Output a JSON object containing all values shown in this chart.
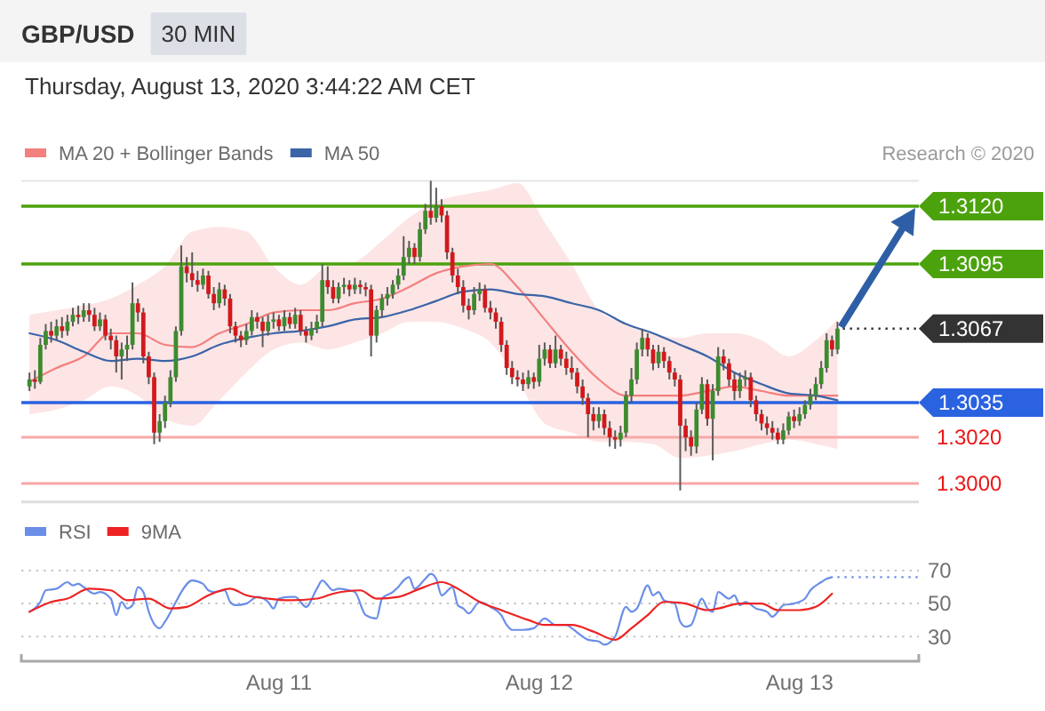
{
  "chart_data": [
    {
      "type": "candlestick",
      "title": "GBP/USD",
      "subtitle": "Thursday, August 13, 2020 3:44:22 AM CET",
      "annotations": [
        "30 MIN",
        "Research © 2020"
      ],
      "x": [
        "2020-08-10T01:00",
        "2020-08-10T01:30",
        "2020-08-10T02:00",
        "2020-08-10T02:30",
        "2020-08-10T03:00",
        "2020-08-10T03:30",
        "2020-08-10T04:00",
        "2020-08-10T04:30",
        "2020-08-10T05:00",
        "2020-08-10T05:30",
        "2020-08-10T06:00",
        "2020-08-10T06:30",
        "2020-08-10T07:00",
        "2020-08-10T07:30",
        "2020-08-10T08:00",
        "2020-08-10T08:30",
        "2020-08-10T09:00",
        "2020-08-10T09:30",
        "2020-08-10T10:00",
        "2020-08-10T10:30",
        "2020-08-10T11:00",
        "2020-08-10T11:30",
        "2020-08-10T12:00",
        "2020-08-10T12:30",
        "2020-08-10T13:00",
        "2020-08-10T13:30",
        "2020-08-10T14:00",
        "2020-08-10T14:30",
        "2020-08-10T15:00",
        "2020-08-10T15:30",
        "2020-08-10T16:00",
        "2020-08-10T16:30",
        "2020-08-10T17:00",
        "2020-08-10T17:30",
        "2020-08-10T18:00",
        "2020-08-10T18:30",
        "2020-08-10T19:00",
        "2020-08-10T19:30",
        "2020-08-10T20:00",
        "2020-08-10T20:30",
        "2020-08-10T21:00",
        "2020-08-10T21:30",
        "2020-08-10T22:00",
        "2020-08-10T22:30",
        "2020-08-10T23:00",
        "2020-08-10T23:30",
        "2020-08-11T00:00",
        "2020-08-11T00:30",
        "2020-08-11T01:00",
        "2020-08-11T01:30",
        "2020-08-11T02:00",
        "2020-08-11T02:30",
        "2020-08-11T03:00",
        "2020-08-11T03:30",
        "2020-08-11T04:00",
        "2020-08-11T04:30",
        "2020-08-11T05:00",
        "2020-08-11T05:30",
        "2020-08-11T06:00",
        "2020-08-11T06:30",
        "2020-08-11T07:00",
        "2020-08-11T07:30",
        "2020-08-11T08:00",
        "2020-08-11T08:30",
        "2020-08-11T09:00",
        "2020-08-11T09:30",
        "2020-08-11T10:00",
        "2020-08-11T10:30",
        "2020-08-11T11:00",
        "2020-08-11T11:30",
        "2020-08-11T12:00",
        "2020-08-11T12:30",
        "2020-08-11T13:00",
        "2020-08-11T13:30",
        "2020-08-11T14:00",
        "2020-08-11T14:30",
        "2020-08-11T15:00",
        "2020-08-11T15:30",
        "2020-08-11T16:00",
        "2020-08-11T16:30",
        "2020-08-11T17:00",
        "2020-08-11T17:30",
        "2020-08-11T18:00",
        "2020-08-11T18:30",
        "2020-08-11T19:00",
        "2020-08-11T19:30",
        "2020-08-11T20:00",
        "2020-08-11T20:30",
        "2020-08-11T21:00",
        "2020-08-11T21:30",
        "2020-08-11T22:00",
        "2020-08-11T22:30",
        "2020-08-11T23:00",
        "2020-08-11T23:30",
        "2020-08-12T00:00",
        "2020-08-12T00:30",
        "2020-08-12T01:00",
        "2020-08-12T01:30",
        "2020-08-12T02:00",
        "2020-08-12T02:30",
        "2020-08-12T03:00",
        "2020-08-12T03:30",
        "2020-08-12T04:00",
        "2020-08-12T04:30",
        "2020-08-12T05:00",
        "2020-08-12T05:30",
        "2020-08-12T06:00",
        "2020-08-12T06:30",
        "2020-08-12T07:00",
        "2020-08-12T07:30",
        "2020-08-12T08:00",
        "2020-08-12T08:30",
        "2020-08-12T09:00",
        "2020-08-12T09:30",
        "2020-08-12T10:00",
        "2020-08-12T10:30",
        "2020-08-12T11:00",
        "2020-08-12T11:30",
        "2020-08-12T12:00",
        "2020-08-12T12:30",
        "2020-08-12T13:00",
        "2020-08-12T13:30",
        "2020-08-12T14:00",
        "2020-08-12T14:30",
        "2020-08-12T15:00",
        "2020-08-12T15:30",
        "2020-08-12T16:00",
        "2020-08-12T16:30",
        "2020-08-12T17:00",
        "2020-08-12T17:30",
        "2020-08-12T18:00",
        "2020-08-12T18:30",
        "2020-08-12T19:00",
        "2020-08-12T19:30",
        "2020-08-12T20:00",
        "2020-08-12T20:30",
        "2020-08-12T21:00",
        "2020-08-12T21:30",
        "2020-08-12T22:00",
        "2020-08-12T22:30",
        "2020-08-12T23:00",
        "2020-08-12T23:30",
        "2020-08-13T00:00",
        "2020-08-13T00:30",
        "2020-08-13T01:00",
        "2020-08-13T01:30",
        "2020-08-13T02:00",
        "2020-08-13T02:30",
        "2020-08-13T03:00",
        "2020-08-13T03:30"
      ],
      "ohlc": [
        [
          1.3042,
          1.3048,
          1.304,
          1.3045
        ],
        [
          1.3045,
          1.3049,
          1.3041,
          1.3044
        ],
        [
          1.3044,
          1.3063,
          1.3043,
          1.306
        ],
        [
          1.306,
          1.3069,
          1.3058,
          1.3066
        ],
        [
          1.3066,
          1.307,
          1.3061,
          1.3064
        ],
        [
          1.3064,
          1.3071,
          1.3062,
          1.3068
        ],
        [
          1.3068,
          1.3072,
          1.3063,
          1.3066
        ],
        [
          1.3066,
          1.3073,
          1.3064,
          1.307
        ],
        [
          1.307,
          1.3076,
          1.3068,
          1.3073
        ],
        [
          1.3073,
          1.3077,
          1.3069,
          1.3072
        ],
        [
          1.3072,
          1.3078,
          1.307,
          1.3075
        ],
        [
          1.3075,
          1.3078,
          1.307,
          1.3073
        ],
        [
          1.3073,
          1.3076,
          1.3066,
          1.3068
        ],
        [
          1.3068,
          1.3074,
          1.3066,
          1.3071
        ],
        [
          1.3071,
          1.3073,
          1.3062,
          1.3064
        ],
        [
          1.3064,
          1.3067,
          1.3058,
          1.3062
        ],
        [
          1.3062,
          1.3064,
          1.3048,
          1.3055
        ],
        [
          1.3055,
          1.3061,
          1.3045,
          1.3058
        ],
        [
          1.3058,
          1.3064,
          1.3053,
          1.306
        ],
        [
          1.306,
          1.3087,
          1.3058,
          1.3078
        ],
        [
          1.3078,
          1.308,
          1.307,
          1.3074
        ],
        [
          1.3074,
          1.3076,
          1.3052,
          1.3055
        ],
        [
          1.3055,
          1.3057,
          1.3043,
          1.3046
        ],
        [
          1.3046,
          1.3048,
          1.3017,
          1.3022
        ],
        [
          1.3022,
          1.303,
          1.3018,
          1.3027
        ],
        [
          1.3027,
          1.3038,
          1.3024,
          1.3035
        ],
        [
          1.3035,
          1.3049,
          1.3033,
          1.3046
        ],
        [
          1.3046,
          1.3068,
          1.3044,
          1.3066
        ],
        [
          1.3066,
          1.3103,
          1.3064,
          1.3094
        ],
        [
          1.3094,
          1.3098,
          1.3087,
          1.3091
        ],
        [
          1.3091,
          1.31,
          1.3085,
          1.3088
        ],
        [
          1.3088,
          1.3092,
          1.3083,
          1.3086
        ],
        [
          1.3086,
          1.3093,
          1.3084,
          1.309
        ],
        [
          1.309,
          1.3092,
          1.308,
          1.3082
        ],
        [
          1.3082,
          1.3085,
          1.3075,
          1.3078
        ],
        [
          1.3078,
          1.3087,
          1.3076,
          1.3084
        ],
        [
          1.3084,
          1.3086,
          1.3077,
          1.308
        ],
        [
          1.308,
          1.3082,
          1.3065,
          1.3068
        ],
        [
          1.3068,
          1.307,
          1.3061,
          1.3064
        ],
        [
          1.3064,
          1.3066,
          1.3059,
          1.3062
        ],
        [
          1.3062,
          1.3069,
          1.306,
          1.3066
        ],
        [
          1.3066,
          1.3075,
          1.3064,
          1.3072
        ],
        [
          1.3072,
          1.3074,
          1.3067,
          1.307
        ],
        [
          1.307,
          1.3072,
          1.3059,
          1.3066
        ],
        [
          1.3066,
          1.3073,
          1.3064,
          1.307
        ],
        [
          1.307,
          1.3074,
          1.3067,
          1.3071
        ],
        [
          1.3071,
          1.3073,
          1.3066,
          1.3068
        ],
        [
          1.3068,
          1.3075,
          1.3066,
          1.3072
        ],
        [
          1.3072,
          1.3074,
          1.3067,
          1.3069
        ],
        [
          1.3069,
          1.3076,
          1.3067,
          1.3073
        ],
        [
          1.3073,
          1.3075,
          1.3064,
          1.3066
        ],
        [
          1.3066,
          1.3068,
          1.3061,
          1.3064
        ],
        [
          1.3064,
          1.307,
          1.3062,
          1.3067
        ],
        [
          1.3067,
          1.3073,
          1.3065,
          1.307
        ],
        [
          1.307,
          1.3095,
          1.3068,
          1.3088
        ],
        [
          1.3088,
          1.3094,
          1.3082,
          1.3085
        ],
        [
          1.3085,
          1.3088,
          1.3078,
          1.308
        ],
        [
          1.308,
          1.3087,
          1.3078,
          1.3085
        ],
        [
          1.3085,
          1.3089,
          1.3082,
          1.3086
        ],
        [
          1.3086,
          1.3088,
          1.3081,
          1.3084
        ],
        [
          1.3084,
          1.3089,
          1.3082,
          1.3086
        ],
        [
          1.3086,
          1.3088,
          1.3082,
          1.3085
        ],
        [
          1.3085,
          1.3087,
          1.3081,
          1.3084
        ],
        [
          1.3084,
          1.3086,
          1.3055,
          1.3064
        ],
        [
          1.3064,
          1.3077,
          1.3061,
          1.3075
        ],
        [
          1.3075,
          1.3082,
          1.3072,
          1.308
        ],
        [
          1.308,
          1.3085,
          1.3077,
          1.3082
        ],
        [
          1.3082,
          1.3088,
          1.308,
          1.3086
        ],
        [
          1.3086,
          1.3093,
          1.3084,
          1.309
        ],
        [
          1.309,
          1.3107,
          1.3088,
          1.3098
        ],
        [
          1.3098,
          1.3105,
          1.3095,
          1.3102
        ],
        [
          1.3102,
          1.3104,
          1.3095,
          1.3098
        ],
        [
          1.3098,
          1.3113,
          1.3096,
          1.311
        ],
        [
          1.311,
          1.3121,
          1.3108,
          1.3118
        ],
        [
          1.3118,
          1.3131,
          1.3112,
          1.3115
        ],
        [
          1.3115,
          1.3128,
          1.3113,
          1.312
        ],
        [
          1.312,
          1.3123,
          1.3113,
          1.3116
        ],
        [
          1.3116,
          1.3118,
          1.3097,
          1.31
        ],
        [
          1.31,
          1.3102,
          1.3087,
          1.309
        ],
        [
          1.309,
          1.3093,
          1.3082,
          1.3085
        ],
        [
          1.3085,
          1.3088,
          1.3074,
          1.3077
        ],
        [
          1.3077,
          1.308,
          1.3071,
          1.3075
        ],
        [
          1.3075,
          1.3085,
          1.3073,
          1.3082
        ],
        [
          1.3082,
          1.3087,
          1.3079,
          1.3084
        ],
        [
          1.3084,
          1.3086,
          1.3074,
          1.3076
        ],
        [
          1.3076,
          1.3079,
          1.3071,
          1.3074
        ],
        [
          1.3074,
          1.3076,
          1.3067,
          1.307
        ],
        [
          1.307,
          1.3072,
          1.3057,
          1.306
        ],
        [
          1.306,
          1.3062,
          1.3047,
          1.305
        ],
        [
          1.305,
          1.3053,
          1.3043,
          1.3046
        ],
        [
          1.3046,
          1.3049,
          1.3042,
          1.3045
        ],
        [
          1.3045,
          1.3048,
          1.304,
          1.3043
        ],
        [
          1.3043,
          1.3049,
          1.3041,
          1.3046
        ],
        [
          1.3046,
          1.3048,
          1.3041,
          1.3044
        ],
        [
          1.3044,
          1.306,
          1.3042,
          1.3054
        ],
        [
          1.3054,
          1.3061,
          1.3051,
          1.3058
        ],
        [
          1.3058,
          1.306,
          1.305,
          1.3052
        ],
        [
          1.3052,
          1.3064,
          1.305,
          1.3058
        ],
        [
          1.3058,
          1.306,
          1.3051,
          1.3054
        ],
        [
          1.3054,
          1.3057,
          1.3047,
          1.305
        ],
        [
          1.305,
          1.3055,
          1.3045,
          1.3048
        ],
        [
          1.3048,
          1.305,
          1.3039,
          1.3042
        ],
        [
          1.3042,
          1.3045,
          1.3034,
          1.3037
        ],
        [
          1.3037,
          1.3039,
          1.302,
          1.303
        ],
        [
          1.303,
          1.3033,
          1.3023,
          1.3027
        ],
        [
          1.3027,
          1.3033,
          1.3024,
          1.303
        ],
        [
          1.303,
          1.3032,
          1.3021,
          1.3024
        ],
        [
          1.3024,
          1.3027,
          1.3016,
          1.302
        ],
        [
          1.302,
          1.3023,
          1.3015,
          1.3019
        ],
        [
          1.3019,
          1.3025,
          1.3016,
          1.3022
        ],
        [
          1.3022,
          1.304,
          1.302,
          1.3038
        ],
        [
          1.3038,
          1.305,
          1.3035,
          1.3045
        ],
        [
          1.3045,
          1.3061,
          1.3043,
          1.3058
        ],
        [
          1.3058,
          1.3067,
          1.3055,
          1.3063
        ],
        [
          1.3063,
          1.3065,
          1.3055,
          1.3058
        ],
        [
          1.3058,
          1.306,
          1.3049,
          1.3052
        ],
        [
          1.3052,
          1.306,
          1.305,
          1.3057
        ],
        [
          1.3057,
          1.3059,
          1.305,
          1.3053
        ],
        [
          1.3053,
          1.3055,
          1.3045,
          1.3048
        ],
        [
          1.3048,
          1.305,
          1.3042,
          1.3045
        ],
        [
          1.3045,
          1.3047,
          1.2997,
          1.3025
        ],
        [
          1.3025,
          1.3028,
          1.3014,
          1.302
        ],
        [
          1.302,
          1.3023,
          1.3012,
          1.3016
        ],
        [
          1.3016,
          1.3035,
          1.3013,
          1.3032
        ],
        [
          1.3032,
          1.3046,
          1.303,
          1.3043
        ],
        [
          1.3043,
          1.3045,
          1.3025,
          1.3028
        ],
        [
          1.3028,
          1.3043,
          1.301,
          1.304
        ],
        [
          1.304,
          1.3059,
          1.3038,
          1.3055
        ],
        [
          1.3055,
          1.3058,
          1.3049,
          1.3052
        ],
        [
          1.3052,
          1.3054,
          1.3042,
          1.3045
        ],
        [
          1.3045,
          1.3048,
          1.3036,
          1.304
        ],
        [
          1.304,
          1.3048,
          1.3037,
          1.3045
        ],
        [
          1.3045,
          1.3049,
          1.3042,
          1.3046
        ],
        [
          1.3046,
          1.3048,
          1.3033,
          1.3036
        ],
        [
          1.3036,
          1.3038,
          1.3027,
          1.303
        ],
        [
          1.303,
          1.3032,
          1.3023,
          1.3026
        ],
        [
          1.3026,
          1.3029,
          1.3021,
          1.3024
        ],
        [
          1.3024,
          1.3027,
          1.3019,
          1.3022
        ],
        [
          1.3022,
          1.3024,
          1.3017,
          1.3019
        ],
        [
          1.3019,
          1.3026,
          1.3017,
          1.3023
        ],
        [
          1.3023,
          1.3031,
          1.3021,
          1.3029
        ],
        [
          1.3029,
          1.3032,
          1.3024,
          1.3027
        ],
        [
          1.3027,
          1.3033,
          1.3025,
          1.303
        ],
        [
          1.303,
          1.3036,
          1.3028,
          1.3034
        ],
        [
          1.3034,
          1.3041,
          1.3032,
          1.3038
        ],
        [
          1.3038,
          1.3046,
          1.3036,
          1.3043
        ],
        [
          1.3043,
          1.3053,
          1.3041,
          1.305
        ],
        [
          1.305,
          1.3065,
          1.3048,
          1.3062
        ],
        [
          1.3062,
          1.3064,
          1.3055,
          1.3058
        ],
        [
          1.3058,
          1.307,
          1.3056,
          1.3067
        ]
      ],
      "series": [
        {
          "name": "MA 20 + Bollinger Bands",
          "type": "line",
          "color": "#f47f7f",
          "x": [
            "2020-08-10T01:00",
            "2020-08-10T03:30",
            "2020-08-10T06:00",
            "2020-08-10T08:30",
            "2020-08-10T11:00",
            "2020-08-10T13:30",
            "2020-08-10T16:00",
            "2020-08-10T18:30",
            "2020-08-10T21:00",
            "2020-08-10T23:30",
            "2020-08-11T02:00",
            "2020-08-11T04:30",
            "2020-08-11T07:00",
            "2020-08-11T09:30",
            "2020-08-11T12:00",
            "2020-08-11T14:30",
            "2020-08-11T17:00",
            "2020-08-11T19:30",
            "2020-08-11T22:00",
            "2020-08-12T00:30",
            "2020-08-12T03:00",
            "2020-08-12T05:30",
            "2020-08-12T08:00",
            "2020-08-12T10:30",
            "2020-08-12T13:00",
            "2020-08-12T15:30",
            "2020-08-12T18:00",
            "2020-08-12T20:30",
            "2020-08-12T23:00",
            "2020-08-13T01:30",
            "2020-08-13T03:30"
          ],
          "values": [
            1.3044,
            1.305,
            1.3055,
            1.3065,
            1.3065,
            1.306,
            1.3059,
            1.3065,
            1.3069,
            1.3074,
            1.3075,
            1.3075,
            1.3078,
            1.308,
            1.3085,
            1.3091,
            1.3094,
            1.3095,
            1.3085,
            1.3071,
            1.3057,
            1.3045,
            1.3038,
            1.3038,
            1.3038,
            1.304,
            1.3042,
            1.304,
            1.3038,
            1.3038,
            1.3038
          ],
          "lower": [
            1.303,
            1.3032,
            1.3036,
            1.3042,
            1.3038,
            1.3028,
            1.3025,
            1.3036,
            1.3048,
            1.3058,
            1.3061,
            1.3058,
            1.3061,
            1.3065,
            1.307,
            1.307,
            1.3067,
            1.3061,
            1.3045,
            1.3026,
            1.3022,
            1.3018,
            1.3018,
            1.3017,
            1.3011,
            1.3012,
            1.3014,
            1.3017,
            1.3019,
            1.3017,
            1.3015
          ],
          "upper": [
            1.3073,
            1.3075,
            1.3077,
            1.308,
            1.3086,
            1.3094,
            1.3109,
            1.3111,
            1.3109,
            1.3094,
            1.3086,
            1.3094,
            1.3096,
            1.3105,
            1.3115,
            1.3122,
            1.3125,
            1.3127,
            1.313,
            1.3113,
            1.3095,
            1.3075,
            1.3069,
            1.3065,
            1.3063,
            1.3065,
            1.3065,
            1.3062,
            1.3055,
            1.3062,
            1.3071
          ]
        },
        {
          "name": "MA 50",
          "type": "line",
          "color": "#3b64a8",
          "x": [
            "2020-08-10T01:00",
            "2020-08-10T03:30",
            "2020-08-10T06:00",
            "2020-08-10T08:30",
            "2020-08-10T11:00",
            "2020-08-10T13:30",
            "2020-08-10T16:00",
            "2020-08-10T18:30",
            "2020-08-10T21:00",
            "2020-08-10T23:30",
            "2020-08-11T02:00",
            "2020-08-11T04:30",
            "2020-08-11T07:00",
            "2020-08-11T09:30",
            "2020-08-11T12:00",
            "2020-08-11T14:30",
            "2020-08-11T17:00",
            "2020-08-11T19:30",
            "2020-08-11T22:00",
            "2020-08-12T00:30",
            "2020-08-12T03:00",
            "2020-08-12T05:30",
            "2020-08-12T08:00",
            "2020-08-12T10:30",
            "2020-08-12T13:00",
            "2020-08-12T15:30",
            "2020-08-12T18:00",
            "2020-08-12T20:30",
            "2020-08-12T23:00",
            "2020-08-13T01:30",
            "2020-08-13T03:30"
          ],
          "values": [
            1.3065,
            1.3062,
            1.3057,
            1.3053,
            1.3054,
            1.3053,
            1.3055,
            1.306,
            1.3063,
            1.3065,
            1.3066,
            1.3068,
            1.3071,
            1.3072,
            1.3075,
            1.3079,
            1.3083,
            1.3084,
            1.3082,
            1.3081,
            1.3078,
            1.3075,
            1.3069,
            1.3065,
            1.306,
            1.3055,
            1.3048,
            1.3043,
            1.3039,
            1.3038,
            1.3036
          ]
        }
      ],
      "xlim": [
        "2020-08-10T00:15",
        "2020-08-13T11:00"
      ],
      "ylim": [
        1.2992,
        1.3131
      ],
      "legend": "top left",
      "ref_lines": [
        {
          "axis": "y",
          "value": 1.312,
          "label": "1.3120",
          "color": "#4ba20c",
          "line_style": "solid"
        },
        {
          "axis": "y",
          "value": 1.3095,
          "label": "1.3095",
          "color": "#4ba20c",
          "line_style": "solid"
        },
        {
          "axis": "y",
          "value": 1.3067,
          "label": "1.3067",
          "color": "#333333",
          "line_style": "dotted"
        },
        {
          "axis": "y",
          "value": 1.3035,
          "label": "1.3035",
          "color": "#2a62e0",
          "line_style": "solid"
        },
        {
          "axis": "y",
          "value": 1.302,
          "label": "1.3020",
          "color": "#f7a8a8",
          "line_style": "solid"
        },
        {
          "axis": "y",
          "value": 1.3,
          "label": "1.3000",
          "color": "#f7a8a8",
          "line_style": "solid"
        }
      ]
    },
    {
      "type": "line",
      "series": [
        {
          "name": "RSI",
          "color": "#6a8ee8",
          "x": [
            "2020-08-10T01:00",
            "2020-08-10T02:00",
            "2020-08-10T02:30",
            "2020-08-10T03:30",
            "2020-08-10T04:30",
            "2020-08-10T05:00",
            "2020-08-10T05:30",
            "2020-08-10T06:00",
            "2020-08-10T07:00",
            "2020-08-10T07:30",
            "2020-08-10T08:30",
            "2020-08-10T09:00",
            "2020-08-10T09:30",
            "2020-08-10T10:00",
            "2020-08-10T10:30",
            "2020-08-10T11:00",
            "2020-08-10T11:30",
            "2020-08-10T12:00",
            "2020-08-10T13:00",
            "2020-08-10T13:30",
            "2020-08-10T14:30",
            "2020-08-10T15:00",
            "2020-08-10T16:00",
            "2020-08-10T17:00",
            "2020-08-10T17:30",
            "2020-08-10T18:00",
            "2020-08-10T19:00",
            "2020-08-10T19:30",
            "2020-08-10T20:00",
            "2020-08-10T21:00",
            "2020-08-10T22:00",
            "2020-08-10T23:00",
            "2020-08-10T23:30",
            "2020-08-11T00:00",
            "2020-08-11T01:00",
            "2020-08-11T01:30",
            "2020-08-11T02:30",
            "2020-08-11T03:30",
            "2020-08-11T04:00",
            "2020-08-11T05:00",
            "2020-08-11T05:30",
            "2020-08-11T06:30",
            "2020-08-11T07:00",
            "2020-08-11T08:00",
            "2020-08-11T09:00",
            "2020-08-11T09:30",
            "2020-08-11T10:30",
            "2020-08-11T11:00",
            "2020-08-11T11:30",
            "2020-08-11T12:00",
            "2020-08-11T12:30",
            "2020-08-11T13:30",
            "2020-08-11T14:00",
            "2020-08-11T14:30",
            "2020-08-11T15:00",
            "2020-08-11T16:00",
            "2020-08-11T16:30",
            "2020-08-11T17:00",
            "2020-08-11T17:30",
            "2020-08-11T18:30",
            "2020-08-11T19:00",
            "2020-08-11T19:30",
            "2020-08-11T20:30",
            "2020-08-11T21:00",
            "2020-08-11T21:30",
            "2020-08-11T22:30",
            "2020-08-11T23:30",
            "2020-08-12T00:30",
            "2020-08-12T01:30",
            "2020-08-12T02:00",
            "2020-08-12T02:30",
            "2020-08-12T03:00",
            "2020-08-12T04:00",
            "2020-08-12T04:30",
            "2020-08-12T05:30",
            "2020-08-12T06:00",
            "2020-08-12T07:00",
            "2020-08-12T08:00",
            "2020-08-12T08:30",
            "2020-08-12T09:00",
            "2020-08-12T10:00",
            "2020-08-12T10:30",
            "2020-08-12T11:00",
            "2020-08-12T11:30",
            "2020-08-12T12:30",
            "2020-08-12T13:00",
            "2020-08-12T13:30",
            "2020-08-12T14:00",
            "2020-08-12T15:00",
            "2020-08-12T15:30",
            "2020-08-12T16:00",
            "2020-08-12T16:30",
            "2020-08-12T17:30",
            "2020-08-12T18:00",
            "2020-08-12T18:30",
            "2020-08-12T19:00",
            "2020-08-12T20:00",
            "2020-08-12T21:00",
            "2020-08-12T21:30",
            "2020-08-12T22:00",
            "2020-08-12T22:30",
            "2020-08-12T23:30",
            "2020-08-13T00:30",
            "2020-08-13T01:00",
            "2020-08-13T02:00",
            "2020-08-13T02:30",
            "2020-08-13T03:00"
          ],
          "values": [
            45,
            51,
            58,
            59,
            63,
            61,
            62,
            60,
            56,
            57,
            53,
            43,
            51,
            47,
            49,
            60,
            57,
            45,
            35,
            39,
            51,
            57,
            64,
            62,
            58,
            57,
            58,
            51,
            49,
            50,
            54,
            51,
            47,
            53,
            54,
            54,
            48,
            59,
            64,
            58,
            59,
            58,
            57,
            43,
            41,
            53,
            57,
            60,
            64,
            66,
            59,
            65,
            68,
            65,
            55,
            60,
            49,
            47,
            44,
            51,
            50,
            48,
            43,
            37,
            34,
            34,
            35,
            41,
            37,
            37,
            37,
            35,
            30,
            28,
            27,
            25,
            30,
            48,
            45,
            47,
            61,
            55,
            57,
            52,
            50,
            39,
            36,
            37,
            53,
            47,
            45,
            57,
            53,
            55,
            49,
            51,
            47,
            45,
            42,
            45,
            49,
            50,
            53,
            58,
            63,
            65,
            66
          ]
        },
        {
          "name": "9MA",
          "color": "#ee2222",
          "x": [
            "2020-08-10T01:00",
            "2020-08-10T03:00",
            "2020-08-10T04:30",
            "2020-08-10T06:30",
            "2020-08-10T08:30",
            "2020-08-10T10:00",
            "2020-08-10T12:00",
            "2020-08-10T14:00",
            "2020-08-10T15:30",
            "2020-08-10T17:30",
            "2020-08-10T19:30",
            "2020-08-10T21:00",
            "2020-08-10T23:00",
            "2020-08-11T01:00",
            "2020-08-11T03:30",
            "2020-08-11T05:00",
            "2020-08-11T07:30",
            "2020-08-11T09:00",
            "2020-08-11T11:00",
            "2020-08-11T13:00",
            "2020-08-11T15:00",
            "2020-08-11T17:00",
            "2020-08-11T18:30",
            "2020-08-11T20:30",
            "2020-08-11T23:00",
            "2020-08-12T00:30",
            "2020-08-12T03:00",
            "2020-08-12T05:00",
            "2020-08-12T07:00",
            "2020-08-12T08:30",
            "2020-08-12T10:00",
            "2020-08-12T11:30",
            "2020-08-12T13:30",
            "2020-08-12T15:30",
            "2020-08-12T16:30",
            "2020-08-12T18:30",
            "2020-08-12T20:30",
            "2020-08-12T22:00",
            "2020-08-13T00:00",
            "2020-08-13T01:30",
            "2020-08-13T03:00"
          ],
          "values": [
            45,
            51,
            53,
            59,
            58,
            52,
            53,
            47,
            48,
            55,
            59,
            55,
            53,
            52,
            53,
            56,
            58,
            53,
            54,
            59,
            63,
            57,
            51,
            46,
            40,
            37,
            37,
            33,
            28,
            35,
            43,
            51,
            50,
            46,
            47,
            50,
            50,
            46,
            46,
            48,
            56
          ]
        }
      ],
      "xlim": [
        "2020-08-10T00:15",
        "2020-08-13T11:00"
      ],
      "xticks": [
        {
          "value": "2020-08-11",
          "label": "Aug 11"
        },
        {
          "value": "2020-08-12",
          "label": "Aug 12"
        },
        {
          "value": "2020-08-13",
          "label": "Aug 13"
        }
      ],
      "ylim": [
        15,
        70
      ],
      "yticks": [
        30,
        50,
        70
      ],
      "grid": "y",
      "legend": "top left",
      "ref_lines": [
        {
          "axis": "y",
          "value": 66,
          "color": "#6a8ee8",
          "line_style": "dotted"
        }
      ]
    }
  ]
}
